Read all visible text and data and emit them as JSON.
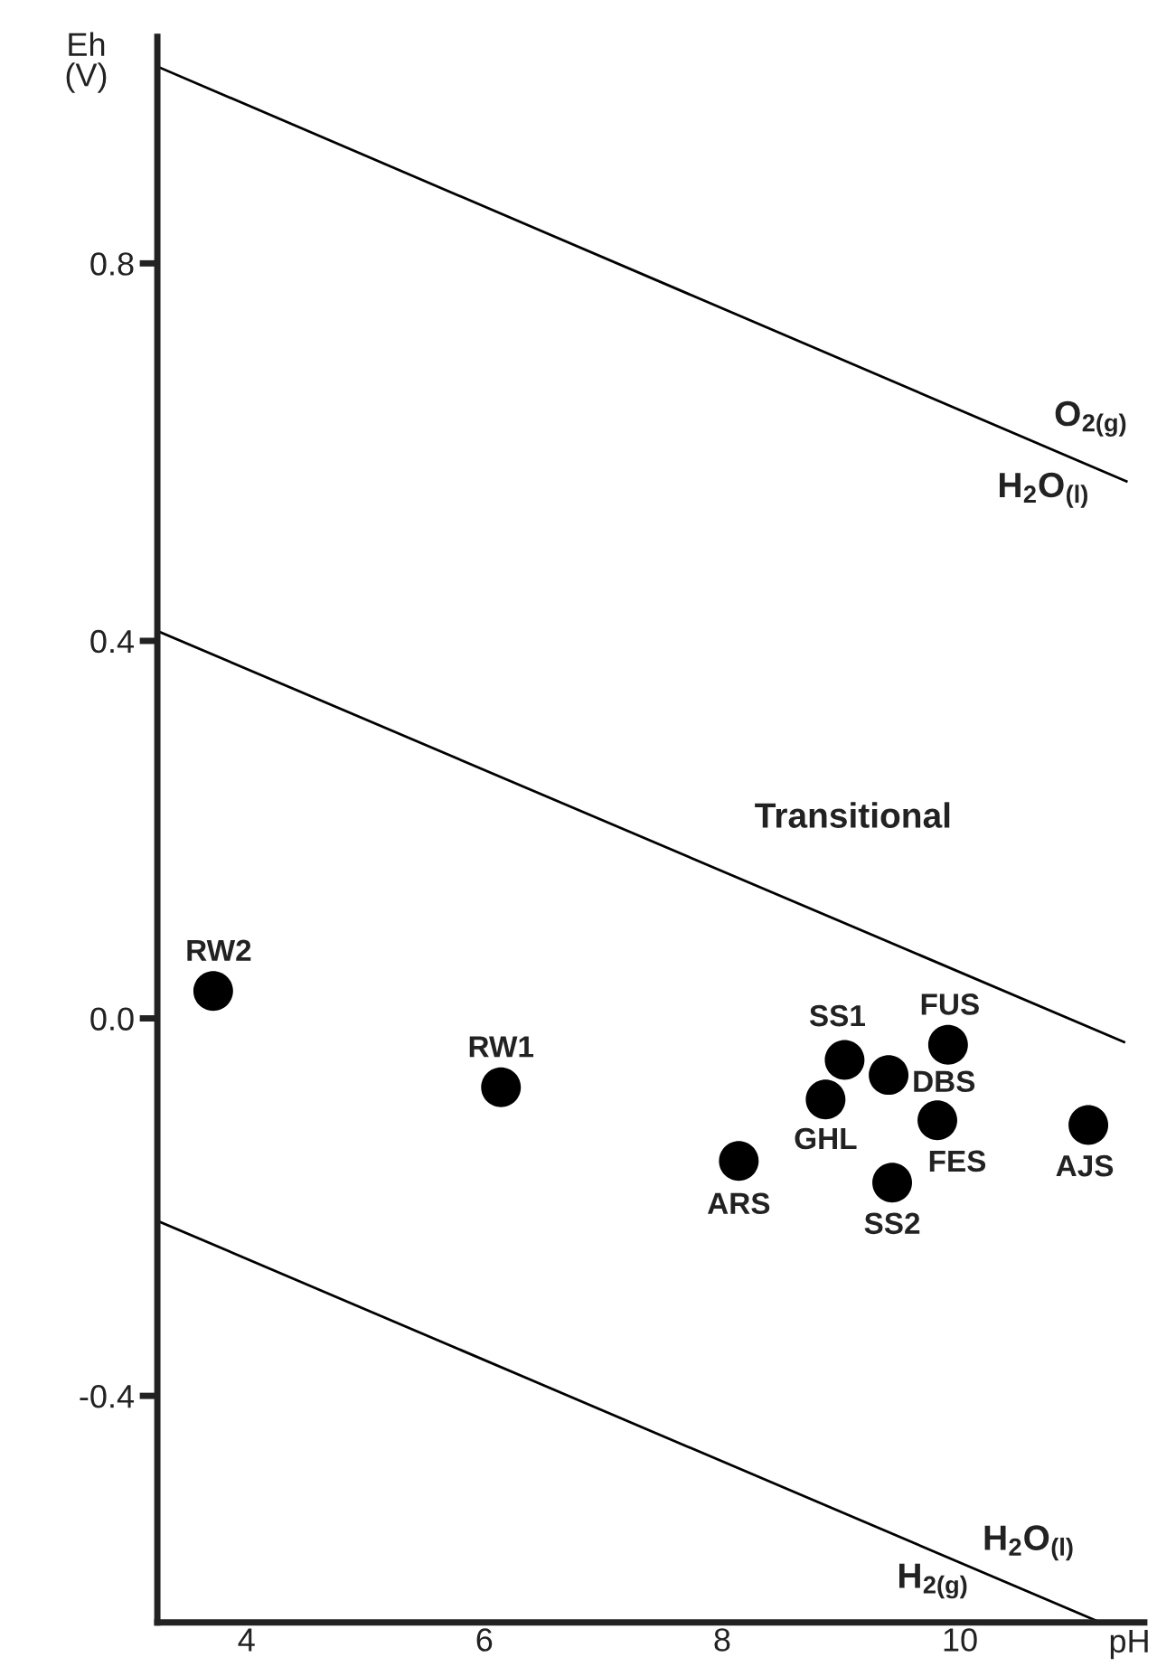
{
  "chart_data": {
    "type": "scatter",
    "xlabel": "pH",
    "ylabel": "Eh\n(V)",
    "xlim": [
      3.25,
      11.55
    ],
    "ylim": [
      -0.64,
      1.04
    ],
    "xticks": [
      4,
      6,
      8,
      10
    ],
    "yticks": [
      -0.4,
      {
        "value": 0,
        "label": "0.0"
      },
      0.4,
      0.8
    ],
    "grid": false,
    "legend": false,
    "series": [
      {
        "type": "line",
        "marker": "none",
        "color": "#000000",
        "x": [
          3.26,
          11.4
        ],
        "values": [
          1.008,
          0.569
        ]
      },
      {
        "type": "line",
        "marker": "none",
        "color": "#000000",
        "x": [
          3.26,
          11.38
        ],
        "values": [
          0.41,
          -0.025
        ]
      },
      {
        "type": "line",
        "marker": "none",
        "color": "#000000",
        "x": [
          3.26,
          11.18
        ],
        "values": [
          -0.215,
          -0.64
        ]
      },
      {
        "name": "RW2",
        "color": "#000000",
        "x": [
          3.72
        ],
        "values": [
          0.029
        ]
      },
      {
        "name": "RW1",
        "color": "#000000",
        "x": [
          6.14
        ],
        "values": [
          -0.073
        ]
      },
      {
        "name": "SS1",
        "color": "#000000",
        "x": [
          9.03
        ],
        "values": [
          -0.044
        ]
      },
      {
        "name": "FUS",
        "color": "#000000",
        "x": [
          9.9
        ],
        "values": [
          -0.028
        ]
      },
      {
        "name": "DBS",
        "color": "#000000",
        "x": [
          9.4
        ],
        "values": [
          -0.06
        ]
      },
      {
        "name": "GHL",
        "color": "#000000",
        "x": [
          8.87
        ],
        "values": [
          -0.086
        ]
      },
      {
        "name": "FES",
        "color": "#000000",
        "x": [
          9.81
        ],
        "values": [
          -0.108
        ]
      },
      {
        "name": "AJS",
        "color": "#000000",
        "x": [
          11.08
        ],
        "values": [
          -0.113
        ]
      },
      {
        "name": "ARS",
        "color": "#000000",
        "x": [
          8.14
        ],
        "values": [
          -0.151
        ]
      },
      {
        "name": "SS2",
        "color": "#000000",
        "x": [
          9.43
        ],
        "values": [
          -0.174
        ]
      }
    ],
    "annotations": [
      "Transitional",
      "O$_{2(g)}$",
      "H$_{2}$O$_{(l)}$",
      "H$_{2}$O$_{(l)}$",
      "H$_{2(g)}$"
    ]
  }
}
